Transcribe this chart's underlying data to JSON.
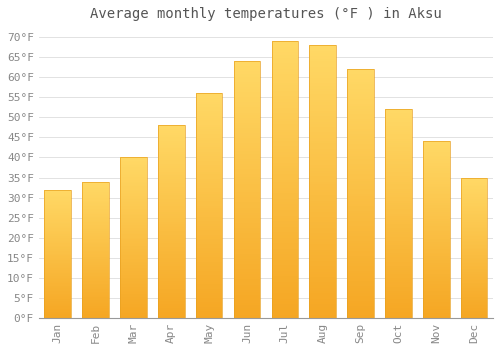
{
  "title": "Average monthly temperatures (°F ) in Aksu",
  "months": [
    "Jan",
    "Feb",
    "Mar",
    "Apr",
    "May",
    "Jun",
    "Jul",
    "Aug",
    "Sep",
    "Oct",
    "Nov",
    "Dec"
  ],
  "values": [
    32,
    34,
    40,
    48,
    56,
    64,
    69,
    68,
    62,
    52,
    44,
    35
  ],
  "bar_color_bottom": "#F5A623",
  "bar_color_top": "#FFD966",
  "bar_edge_color": "#E8A020",
  "background_color": "#FFFFFF",
  "grid_color": "#DDDDDD",
  "ylim": [
    0,
    72
  ],
  "title_fontsize": 10,
  "tick_fontsize": 8,
  "font_family": "monospace",
  "title_color": "#555555",
  "tick_color": "#888888"
}
